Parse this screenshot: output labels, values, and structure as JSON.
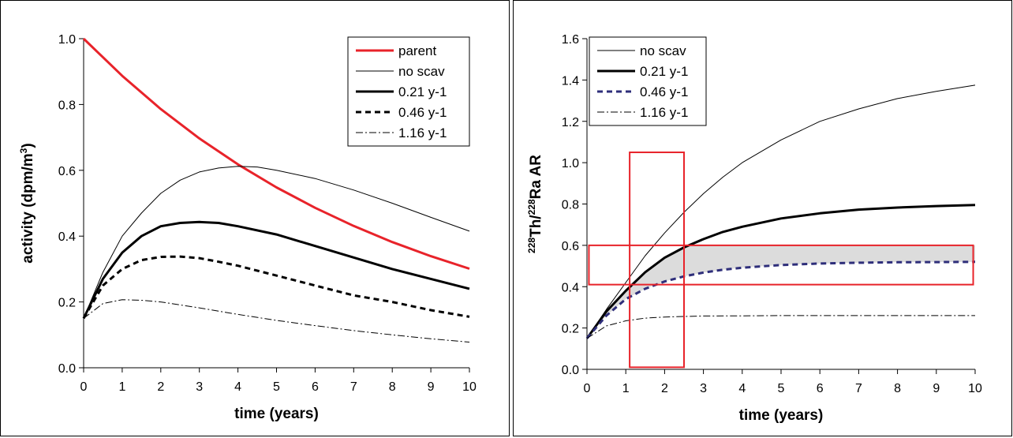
{
  "chart_data": [
    {
      "type": "line",
      "title": "",
      "xlabel": "time (years)",
      "ylabel": "activity (dpm/m",
      "ylabel_sup": "3",
      "ylabel_end": ")",
      "xlim": [
        0,
        10
      ],
      "ylim": [
        0,
        1.0
      ],
      "xticks": [
        "0",
        "1",
        "2",
        "3",
        "4",
        "5",
        "6",
        "7",
        "8",
        "9",
        "10"
      ],
      "yticks": [
        "0.0",
        "0.2",
        "0.4",
        "0.6",
        "0.8",
        "1.0"
      ],
      "legend_position": "top-right",
      "grid": false,
      "series": [
        {
          "name": "parent",
          "color": "#e8232a",
          "style": "thick-solid",
          "x": [
            0,
            1,
            2,
            3,
            4,
            5,
            6,
            7,
            8,
            9,
            10
          ],
          "y": [
            1.0,
            0.887,
            0.786,
            0.697,
            0.618,
            0.548,
            0.486,
            0.431,
            0.382,
            0.339,
            0.301
          ]
        },
        {
          "name": "no scav",
          "color": "#000000",
          "style": "thin-solid",
          "x": [
            0,
            0.5,
            1,
            1.5,
            2,
            2.5,
            3,
            3.5,
            4,
            4.5,
            5,
            6,
            7,
            8,
            9,
            10
          ],
          "y": [
            0.15,
            0.29,
            0.4,
            0.47,
            0.53,
            0.57,
            0.595,
            0.607,
            0.612,
            0.61,
            0.6,
            0.575,
            0.54,
            0.5,
            0.457,
            0.415
          ]
        },
        {
          "name": "0.21 y-1",
          "color": "#000000",
          "style": "thick-solid",
          "x": [
            0,
            0.5,
            1,
            1.5,
            2,
            2.5,
            3,
            3.5,
            4,
            5,
            6,
            7,
            8,
            9,
            10
          ],
          "y": [
            0.15,
            0.27,
            0.35,
            0.4,
            0.43,
            0.44,
            0.443,
            0.44,
            0.43,
            0.405,
            0.37,
            0.335,
            0.3,
            0.27,
            0.24
          ]
        },
        {
          "name": "0.46 y-1",
          "color": "#000000",
          "style": "thick-dash",
          "x": [
            0,
            0.5,
            1,
            1.5,
            2,
            2.5,
            3,
            3.5,
            4,
            5,
            6,
            7,
            8,
            9,
            10
          ],
          "y": [
            0.15,
            0.25,
            0.3,
            0.327,
            0.337,
            0.338,
            0.333,
            0.322,
            0.31,
            0.28,
            0.25,
            0.22,
            0.2,
            0.175,
            0.155
          ]
        },
        {
          "name": "1.16 y-1",
          "color": "#000000",
          "style": "thin-dashdot",
          "x": [
            0,
            0.5,
            1,
            1.5,
            2,
            3,
            4,
            5,
            6,
            7,
            8,
            9,
            10
          ],
          "y": [
            0.15,
            0.195,
            0.207,
            0.205,
            0.2,
            0.182,
            0.162,
            0.144,
            0.128,
            0.113,
            0.1,
            0.088,
            0.078
          ]
        }
      ]
    },
    {
      "type": "line",
      "title": "",
      "xlabel": "time (years)",
      "ylabel_parts": [
        {
          "t": "228",
          "sup": true
        },
        {
          "t": "Th/",
          "sup": false
        },
        {
          "t": "228",
          "sup": true
        },
        {
          "t": "Ra AR",
          "sup": false
        }
      ],
      "xlim": [
        0,
        10
      ],
      "ylim": [
        0,
        1.6
      ],
      "xticks": [
        "0",
        "1",
        "2",
        "3",
        "4",
        "5",
        "6",
        "7",
        "8",
        "9",
        "10"
      ],
      "yticks": [
        "0.0",
        "0.2",
        "0.4",
        "0.6",
        "0.8",
        "1.0",
        "1.2",
        "1.4",
        "1.6"
      ],
      "legend_position": "top-left",
      "grid": false,
      "series": [
        {
          "name": "no scav",
          "color": "#000000",
          "style": "thin-solid",
          "x": [
            0,
            0.5,
            1,
            1.5,
            2,
            2.5,
            3,
            3.5,
            4,
            5,
            6,
            7,
            8,
            9,
            10
          ],
          "y": [
            0.15,
            0.29,
            0.42,
            0.55,
            0.66,
            0.76,
            0.85,
            0.93,
            1.0,
            1.11,
            1.2,
            1.26,
            1.31,
            1.345,
            1.375
          ]
        },
        {
          "name": "0.21 y-1",
          "color": "#000000",
          "style": "thick-solid",
          "x": [
            0,
            0.5,
            1,
            1.5,
            2,
            2.5,
            3,
            3.5,
            4,
            5,
            6,
            7,
            8,
            9,
            10
          ],
          "y": [
            0.15,
            0.28,
            0.38,
            0.47,
            0.54,
            0.59,
            0.63,
            0.665,
            0.69,
            0.73,
            0.755,
            0.773,
            0.783,
            0.79,
            0.795
          ]
        },
        {
          "name": "0.46 y-1",
          "color": "#2e2e7a",
          "style": "thick-dash",
          "x": [
            0,
            0.5,
            1,
            1.5,
            2,
            2.5,
            3,
            3.5,
            4,
            5,
            6,
            7,
            8,
            9,
            10
          ],
          "y": [
            0.15,
            0.26,
            0.34,
            0.39,
            0.425,
            0.45,
            0.468,
            0.482,
            0.492,
            0.505,
            0.512,
            0.516,
            0.518,
            0.519,
            0.52
          ]
        },
        {
          "name": "1.16 y-1",
          "color": "#000000",
          "style": "thin-dashdot",
          "x": [
            0,
            0.5,
            1,
            1.5,
            2,
            2.5,
            3,
            4,
            5,
            6,
            7,
            8,
            9,
            10
          ],
          "y": [
            0.15,
            0.21,
            0.235,
            0.248,
            0.253,
            0.256,
            0.258,
            0.259,
            0.26,
            0.26,
            0.26,
            0.26,
            0.26,
            0.26
          ]
        }
      ],
      "shaded_region": {
        "between": [
          "0.21 y-1",
          "0.46 y-1"
        ],
        "ycap": 0.6,
        "color": "#dcdcdc"
      },
      "highlight_boxes": [
        {
          "x": [
            1.1,
            2.5
          ],
          "y": [
            0.01,
            1.05
          ],
          "color": "#e8232a"
        },
        {
          "x": [
            0.05,
            9.95
          ],
          "y": [
            0.41,
            0.6
          ],
          "color": "#e8232a"
        }
      ]
    }
  ]
}
